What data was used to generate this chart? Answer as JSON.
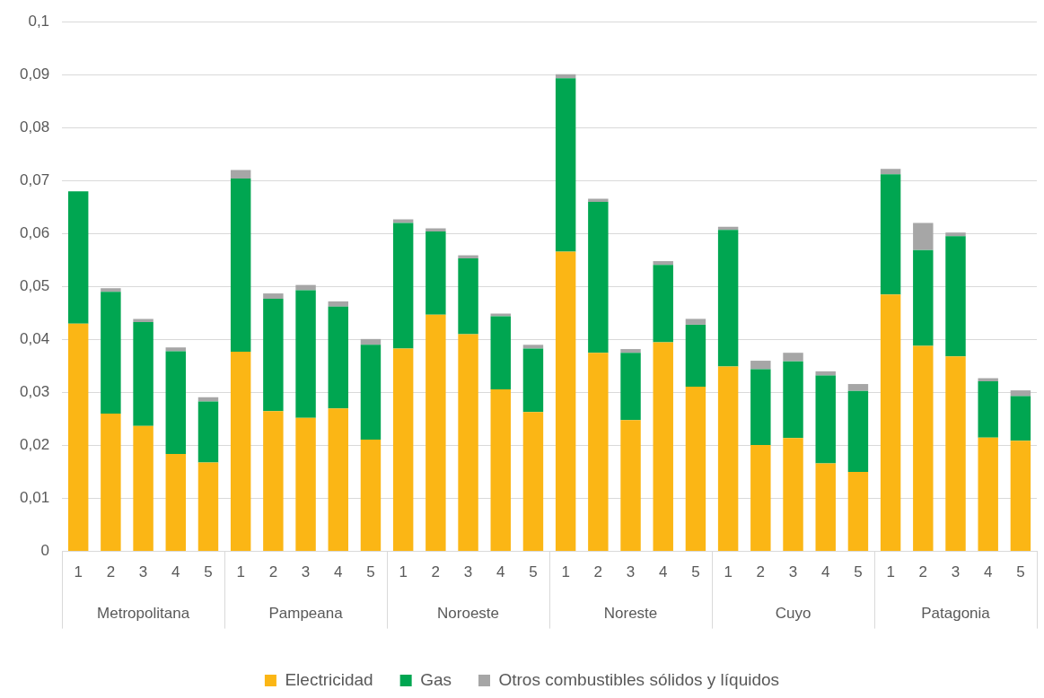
{
  "chart_data": {
    "type": "bar",
    "stacked": true,
    "categories": [
      "1",
      "2",
      "3",
      "4",
      "5",
      "1",
      "2",
      "3",
      "4",
      "5",
      "1",
      "2",
      "3",
      "4",
      "5",
      "1",
      "2",
      "3",
      "4",
      "5",
      "1",
      "2",
      "3",
      "4",
      "5",
      "1",
      "2",
      "3",
      "4",
      "5"
    ],
    "annotations": [
      "Metropolitana",
      "Pampeana",
      "Noroeste",
      "Noreste",
      "Cuyo",
      "Patagonia"
    ],
    "series": [
      {
        "name": "Electricidad",
        "color": "#fbb615",
        "values": [
          0.043,
          0.026,
          0.0237,
          0.0184,
          0.0168,
          0.0377,
          0.0265,
          0.0252,
          0.027,
          0.0211,
          0.0383,
          0.0447,
          0.041,
          0.0306,
          0.0263,
          0.0566,
          0.0375,
          0.0248,
          0.0395,
          0.0311,
          0.0349,
          0.0201,
          0.0214,
          0.0166,
          0.015,
          0.0485,
          0.0388,
          0.0368,
          0.0215,
          0.0209
        ]
      },
      {
        "name": "Gas",
        "color": "#00a651",
        "values": [
          0.025,
          0.023,
          0.0196,
          0.0194,
          0.0115,
          0.0327,
          0.0212,
          0.0241,
          0.0192,
          0.0179,
          0.0237,
          0.0157,
          0.0143,
          0.0138,
          0.012,
          0.0327,
          0.0285,
          0.0127,
          0.0146,
          0.0117,
          0.0258,
          0.0143,
          0.0145,
          0.0166,
          0.0153,
          0.0227,
          0.0181,
          0.0227,
          0.0106,
          0.0084
        ]
      },
      {
        "name": "Otros combustibles sólidos y líquidos",
        "color": "#a6a6a6",
        "values": [
          0,
          0.0007,
          0.0006,
          0.0007,
          0.0008,
          0.0016,
          0.001,
          0.001,
          0.001,
          0.0011,
          0.0007,
          0.0006,
          0.0006,
          0.0005,
          0.0007,
          0.0008,
          0.0006,
          0.0007,
          0.0007,
          0.0011,
          0.0006,
          0.0016,
          0.0016,
          0.0008,
          0.0013,
          0.001,
          0.0051,
          0.0007,
          0.0006,
          0.0011
        ]
      }
    ],
    "ylim": [
      0,
      0.1
    ],
    "yticks": [
      0,
      {
        "value": 0.01,
        "label": "0,01"
      },
      {
        "value": 0.02,
        "label": "0,02"
      },
      {
        "value": 0.03,
        "label": "0,03"
      },
      {
        "value": 0.04,
        "label": "0,04"
      },
      {
        "value": 0.05,
        "label": "0,05"
      },
      {
        "value": 0.06,
        "label": "0,06"
      },
      {
        "value": 0.07,
        "label": "0,07"
      },
      {
        "value": 0.08,
        "label": "0,08"
      },
      {
        "value": 0.09,
        "label": "0,09"
      },
      {
        "value": 0.1,
        "label": "0,1"
      }
    ],
    "grid": "y",
    "legend": "bottom"
  }
}
